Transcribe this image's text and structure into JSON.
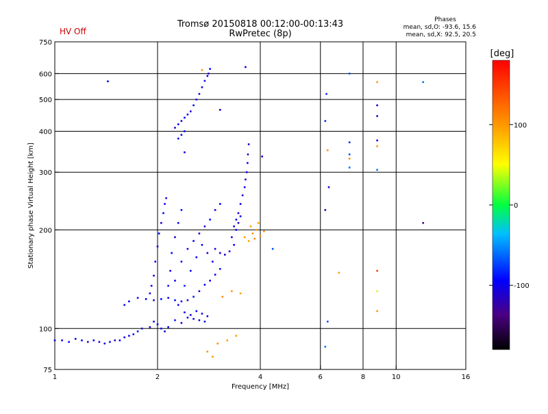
{
  "header": {
    "status": "HV Off",
    "status_color": "#cc0000",
    "title_line1": "Tromsø 20150818 00:12:00-00:13:43",
    "title_line2": "RwPretec (8p)",
    "phases_heading": "Phases",
    "phases_o": "mean, sd,O: -93.6, 15.6",
    "phases_x": "mean, sd,X:  92.5, 20.5"
  },
  "chart_data": {
    "type": "scatter",
    "xlabel": "Frequency [MHz]",
    "ylabel": "Stationary phase Virtual Height [km]",
    "x_scale": "log",
    "y_scale": "log",
    "xlim": [
      1,
      16
    ],
    "ylim": [
      75,
      750
    ],
    "x_ticks": [
      1,
      2,
      4,
      6,
      8,
      10,
      16
    ],
    "y_ticks": [
      75,
      100,
      200,
      300,
      400,
      500,
      600,
      750
    ],
    "x_gridlines": [
      2,
      4,
      6,
      8,
      10
    ],
    "y_gridlines": [
      100,
      200,
      300,
      400,
      500,
      600
    ],
    "colorbar": {
      "label": "[deg]",
      "min": -180,
      "max": 180,
      "ticks": [
        100,
        0,
        -100
      ]
    },
    "series": [
      {
        "points": [
          [
            1.0,
            92,
            -95
          ],
          [
            1.05,
            92,
            -100
          ],
          [
            1.1,
            91,
            -92
          ],
          [
            1.15,
            93,
            -105
          ],
          [
            1.2,
            92,
            -98
          ],
          [
            1.25,
            91,
            -110
          ],
          [
            1.3,
            92,
            -96
          ],
          [
            1.35,
            91,
            -104
          ],
          [
            1.4,
            90,
            -100
          ],
          [
            1.45,
            91,
            -92
          ],
          [
            1.5,
            92,
            -115
          ],
          [
            1.55,
            92,
            -98
          ],
          [
            1.6,
            94,
            -105
          ],
          [
            1.65,
            95,
            -96
          ],
          [
            1.7,
            96,
            -102
          ],
          [
            1.75,
            98,
            -88
          ],
          [
            1.8,
            100,
            -110
          ],
          [
            1.9,
            101,
            -96
          ],
          [
            1.95,
            105,
            -104
          ],
          [
            2.0,
            103,
            -100
          ],
          [
            2.05,
            100,
            -92
          ],
          [
            2.1,
            98,
            -108
          ],
          [
            2.15,
            101,
            -96
          ],
          [
            2.25,
            106,
            -88
          ],
          [
            2.35,
            104,
            -102
          ],
          [
            2.45,
            108,
            -94
          ],
          [
            2.55,
            107,
            -100
          ],
          [
            2.65,
            106,
            -112
          ],
          [
            2.75,
            105,
            -90
          ],
          [
            1.6,
            118,
            -100
          ],
          [
            1.65,
            121,
            -95
          ],
          [
            1.75,
            124,
            -105
          ],
          [
            1.85,
            123,
            -98
          ],
          [
            1.95,
            122,
            -110
          ],
          [
            2.05,
            123,
            -92
          ],
          [
            2.15,
            124,
            -104
          ],
          [
            2.25,
            122,
            -96
          ],
          [
            2.35,
            121,
            -100
          ],
          [
            2.45,
            122,
            -108
          ],
          [
            2.55,
            125,
            -90
          ],
          [
            2.65,
            130,
            -102
          ],
          [
            2.75,
            136,
            -94
          ],
          [
            2.85,
            140,
            -100
          ],
          [
            2.95,
            146,
            -96
          ],
          [
            3.05,
            152,
            -88
          ],
          [
            1.9,
            128,
            -100
          ],
          [
            1.92,
            135,
            -95
          ],
          [
            1.95,
            145,
            -105
          ],
          [
            1.97,
            160,
            -98
          ],
          [
            2.0,
            178,
            -110
          ],
          [
            2.02,
            195,
            -92
          ],
          [
            2.05,
            210,
            -104
          ],
          [
            2.08,
            225,
            -96
          ],
          [
            2.1,
            240,
            -100
          ],
          [
            2.12,
            250,
            -108
          ],
          [
            2.15,
            135,
            -90
          ],
          [
            2.18,
            150,
            -100
          ],
          [
            2.2,
            170,
            -96
          ],
          [
            2.25,
            190,
            -104
          ],
          [
            2.3,
            210,
            -98
          ],
          [
            2.35,
            230,
            -92
          ],
          [
            2.25,
            140,
            -100
          ],
          [
            2.35,
            160,
            -94
          ],
          [
            2.45,
            175,
            -102
          ],
          [
            2.55,
            185,
            -96
          ],
          [
            2.65,
            195,
            -100
          ],
          [
            2.75,
            205,
            -108
          ],
          [
            2.85,
            215,
            -90
          ],
          [
            2.95,
            230,
            -100
          ],
          [
            3.05,
            240,
            -96
          ],
          [
            2.4,
            135,
            -85
          ],
          [
            2.5,
            150,
            -95
          ],
          [
            2.6,
            165,
            -100
          ],
          [
            2.7,
            180,
            -92
          ],
          [
            2.8,
            170,
            -104
          ],
          [
            2.9,
            160,
            -98
          ],
          [
            2.3,
            118,
            -100
          ],
          [
            2.4,
            112,
            -96
          ],
          [
            2.5,
            110,
            -104
          ],
          [
            2.6,
            113,
            -92
          ],
          [
            2.7,
            111,
            -100
          ],
          [
            2.8,
            109,
            -108
          ],
          [
            2.95,
            175,
            -110
          ],
          [
            3.05,
            170,
            -104
          ],
          [
            3.15,
            168,
            -112
          ],
          [
            3.25,
            172,
            -100
          ],
          [
            3.35,
            180,
            -96
          ],
          [
            3.3,
            190,
            -105
          ],
          [
            3.35,
            205,
            -110
          ],
          [
            3.4,
            215,
            -98
          ],
          [
            3.45,
            225,
            -104
          ],
          [
            3.5,
            240,
            -100
          ],
          [
            3.55,
            255,
            -108
          ],
          [
            3.6,
            270,
            -96
          ],
          [
            3.62,
            285,
            -110
          ],
          [
            3.65,
            300,
            -102
          ],
          [
            3.67,
            320,
            -100
          ],
          [
            3.68,
            340,
            -115
          ],
          [
            3.7,
            365,
            -104
          ],
          [
            3.4,
            200,
            -100
          ],
          [
            3.45,
            210,
            -110
          ],
          [
            3.5,
            220,
            -96
          ],
          [
            3.6,
            190,
            100
          ],
          [
            3.7,
            185,
            95
          ],
          [
            3.8,
            195,
            105
          ],
          [
            3.9,
            200,
            98
          ],
          [
            4.0,
            192,
            100
          ],
          [
            3.75,
            205,
            102
          ],
          [
            3.85,
            188,
            108
          ],
          [
            3.95,
            210,
            96
          ],
          [
            4.1,
            198,
            104
          ],
          [
            3.0,
            90,
            105
          ],
          [
            3.2,
            92,
            98
          ],
          [
            3.4,
            95,
            102
          ],
          [
            3.1,
            125,
            110
          ],
          [
            3.3,
            130,
            100
          ],
          [
            3.5,
            128,
            96
          ],
          [
            2.8,
            85,
            104
          ],
          [
            2.9,
            82,
            100
          ],
          [
            2.25,
            410,
            -100
          ],
          [
            2.3,
            420,
            -96
          ],
          [
            2.35,
            430,
            -104
          ],
          [
            2.4,
            440,
            -92
          ],
          [
            2.45,
            450,
            -100
          ],
          [
            2.5,
            460,
            -108
          ],
          [
            2.55,
            480,
            -90
          ],
          [
            2.6,
            500,
            -100
          ],
          [
            2.65,
            520,
            -96
          ],
          [
            2.7,
            545,
            -104
          ],
          [
            2.75,
            570,
            -98
          ],
          [
            2.8,
            590,
            -100
          ],
          [
            2.82,
            600,
            -110
          ],
          [
            2.85,
            620,
            -92
          ],
          [
            2.3,
            380,
            -96
          ],
          [
            2.35,
            390,
            -104
          ],
          [
            2.4,
            400,
            -100
          ],
          [
            1.43,
            568,
            -100
          ],
          [
            3.62,
            628,
            -102
          ],
          [
            2.7,
            615,
            100
          ],
          [
            3.05,
            465,
            -110
          ],
          [
            2.4,
            345,
            -100
          ],
          [
            4.05,
            335,
            -105
          ],
          [
            6.25,
            520,
            -80
          ],
          [
            6.2,
            430,
            -80
          ],
          [
            6.3,
            350,
            100
          ],
          [
            6.35,
            270,
            -108
          ],
          [
            6.2,
            230,
            -120
          ],
          [
            6.3,
            105,
            -70
          ],
          [
            6.2,
            88,
            -60
          ],
          [
            7.3,
            600,
            -70
          ],
          [
            7.3,
            370,
            -80
          ],
          [
            7.3,
            340,
            -70
          ],
          [
            7.3,
            310,
            -60
          ],
          [
            7.3,
            330,
            105
          ],
          [
            8.8,
            565,
            100
          ],
          [
            8.8,
            480,
            -110
          ],
          [
            8.8,
            445,
            -120
          ],
          [
            8.8,
            375,
            -100
          ],
          [
            8.8,
            360,
            100
          ],
          [
            8.8,
            305,
            -60
          ],
          [
            8.8,
            150,
            150
          ],
          [
            8.8,
            130,
            40
          ],
          [
            8.8,
            113,
            100
          ],
          [
            12.0,
            565,
            -60
          ],
          [
            12.0,
            210,
            -130
          ],
          [
            4.35,
            175,
            -70
          ],
          [
            6.8,
            148,
            100
          ]
        ]
      }
    ]
  }
}
